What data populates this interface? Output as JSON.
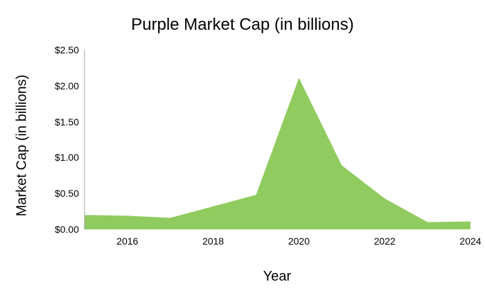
{
  "chart_data": {
    "type": "area",
    "title": "Purple Market Cap (in billions)",
    "xlabel": "Year",
    "ylabel": "Market Cap (in billions)",
    "x": [
      2015,
      2016,
      2017,
      2018,
      2019,
      2020,
      2021,
      2022,
      2023,
      2024
    ],
    "series": [
      {
        "name": "Market Cap",
        "values": [
          0.2,
          0.19,
          0.16,
          0.32,
          0.48,
          2.11,
          0.89,
          0.43,
          0.1,
          0.11
        ],
        "color": "#8fcb5e"
      }
    ],
    "y_ticks": [
      "$0.00",
      "$0.50",
      "$1.00",
      "$1.50",
      "$2.00",
      "$2.50"
    ],
    "x_ticks": [
      "2016",
      "2018",
      "2020",
      "2022",
      "2024"
    ],
    "ylim": [
      0,
      2.5
    ],
    "xlim": [
      2015,
      2024
    ],
    "grid": false,
    "legend": "none"
  }
}
